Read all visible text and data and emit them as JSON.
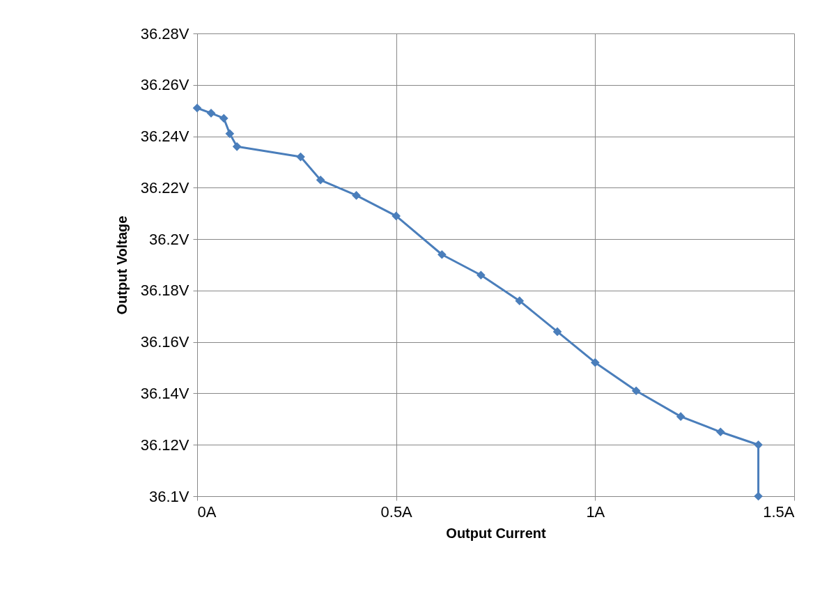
{
  "chart_data": {
    "type": "line",
    "xlabel": "Output Current",
    "ylabel": "Output Voltage",
    "x": [
      0,
      0.035,
      0.067,
      0.082,
      0.1,
      0.26,
      0.31,
      0.4,
      0.5,
      0.615,
      0.713,
      0.81,
      0.905,
      1.0,
      1.103,
      1.215,
      1.315,
      1.41,
      1.41
    ],
    "series": [
      {
        "color": "#4a7ebb",
        "values": [
          36.251,
          36.249,
          36.247,
          36.241,
          36.236,
          36.232,
          36.223,
          36.217,
          36.209,
          36.194,
          36.186,
          36.176,
          36.164,
          36.152,
          36.141,
          36.131,
          36.125,
          36.12,
          36.1
        ]
      }
    ],
    "xlim": [
      0,
      1.5
    ],
    "xticks": [
      {
        "value": 0,
        "label": "0A"
      },
      {
        "value": 0.5,
        "label": "0.5A"
      },
      {
        "value": 1,
        "label": "1A"
      },
      {
        "value": 1.5,
        "label": "1.5A"
      }
    ],
    "ylim": [
      36.1,
      36.28
    ],
    "yticks": [
      {
        "value": 36.1,
        "label": "36.1V"
      },
      {
        "value": 36.12,
        "label": "36.12V"
      },
      {
        "value": 36.14,
        "label": "36.14V"
      },
      {
        "value": 36.16,
        "label": "36.16V"
      },
      {
        "value": 36.18,
        "label": "36.18V"
      },
      {
        "value": 36.2,
        "label": "36.2V"
      },
      {
        "value": 36.22,
        "label": "36.22V"
      },
      {
        "value": 36.24,
        "label": "36.24V"
      },
      {
        "value": 36.26,
        "label": "36.26V"
      },
      {
        "value": 36.28,
        "label": "36.28V"
      }
    ],
    "grid": true,
    "marker": "diamond",
    "line_style": "solid",
    "legend": false
  }
}
